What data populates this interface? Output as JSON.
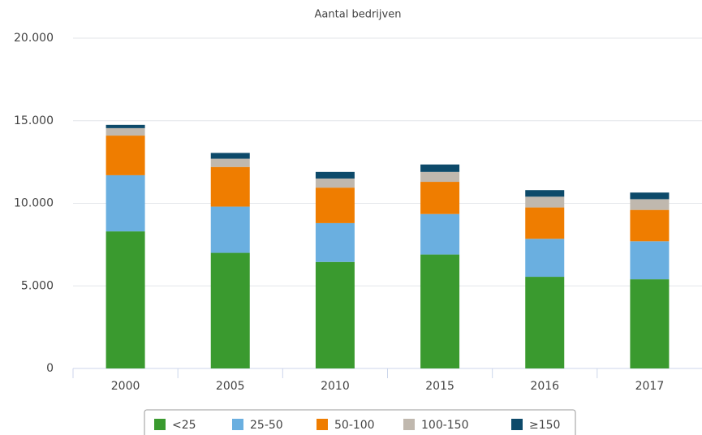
{
  "chart_data": {
    "type": "stacked_bar",
    "title": "Aantal bedrijven",
    "categories": [
      "2000",
      "2005",
      "2010",
      "2015",
      "2016",
      "2017"
    ],
    "series": [
      {
        "name": "<25",
        "color": "#3a9a2f",
        "values": [
          8300,
          7000,
          6450,
          6900,
          5550,
          5400
        ]
      },
      {
        "name": "25-50",
        "color": "#6aafe0",
        "values": [
          3400,
          2800,
          2350,
          2450,
          2300,
          2300
        ]
      },
      {
        "name": "50-100",
        "color": "#ef7d00",
        "values": [
          2400,
          2400,
          2150,
          1950,
          1900,
          1900
        ]
      },
      {
        "name": "100-150",
        "color": "#c0b8ae",
        "values": [
          450,
          500,
          550,
          600,
          650,
          650
        ]
      },
      {
        "name": "≥150",
        "color": "#0d4a6a",
        "values": [
          200,
          350,
          400,
          450,
          400,
          400
        ]
      }
    ],
    "ylim": [
      0,
      20000
    ],
    "yticks": [
      0,
      {
        "value": 5000,
        "label": "5.000"
      },
      {
        "value": 10000,
        "label": "10.000"
      },
      {
        "value": 15000,
        "label": "15.000"
      },
      {
        "value": 20000,
        "label": "20.000"
      }
    ],
    "grid": true,
    "legend": "bottom"
  }
}
